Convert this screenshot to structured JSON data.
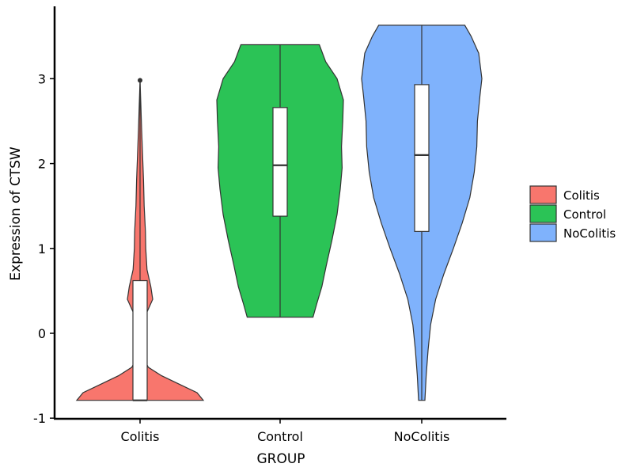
{
  "chart_data": {
    "type": "violin",
    "title": "",
    "xlabel": "GROUP",
    "ylabel": "Expression of CTSW",
    "ylim": [
      -1,
      3.85
    ],
    "yticks": [
      -1,
      0,
      1,
      2,
      3
    ],
    "ytick_labels": [
      "-1",
      "0",
      "1",
      "2",
      "3"
    ],
    "categories": [
      "Colitis",
      "Control",
      "NoColitis"
    ],
    "legend_position": "right",
    "grid": false,
    "series": [
      {
        "name": "Colitis",
        "color": "#F8766D",
        "min": -0.79,
        "max": 2.98,
        "box": {
          "q1": -0.79,
          "median": -0.79,
          "q3": 0.62,
          "whisker_low": -0.79,
          "whisker_high": 2.98
        },
        "outliers": [
          2.98
        ],
        "density": [
          [
            -0.79,
            1.0
          ],
          [
            -0.7,
            0.9
          ],
          [
            -0.6,
            0.62
          ],
          [
            -0.5,
            0.34
          ],
          [
            -0.4,
            0.13
          ],
          [
            -0.3,
            0.06
          ],
          [
            -0.15,
            0.035
          ],
          [
            0.0,
            0.03
          ],
          [
            0.15,
            0.05
          ],
          [
            0.3,
            0.14
          ],
          [
            0.4,
            0.2
          ],
          [
            0.55,
            0.17
          ],
          [
            0.75,
            0.11
          ],
          [
            1.0,
            0.09
          ],
          [
            1.2,
            0.085
          ],
          [
            1.5,
            0.065
          ],
          [
            1.8,
            0.055
          ],
          [
            2.1,
            0.04
          ],
          [
            2.4,
            0.025
          ],
          [
            2.7,
            0.012
          ],
          [
            2.98,
            0.0
          ]
        ]
      },
      {
        "name": "Control",
        "color": "#2BC356",
        "min": 0.19,
        "max": 3.4,
        "box": {
          "q1": 1.38,
          "median": 1.98,
          "q3": 2.66,
          "whisker_low": 0.19,
          "whisker_high": 3.4
        },
        "outliers": [],
        "density": [
          [
            0.19,
            0.52
          ],
          [
            0.35,
            0.58
          ],
          [
            0.55,
            0.66
          ],
          [
            0.8,
            0.73
          ],
          [
            1.1,
            0.82
          ],
          [
            1.4,
            0.9
          ],
          [
            1.7,
            0.95
          ],
          [
            1.95,
            0.98
          ],
          [
            2.2,
            0.97
          ],
          [
            2.5,
            0.99
          ],
          [
            2.75,
            1.0
          ],
          [
            3.0,
            0.9
          ],
          [
            3.2,
            0.72
          ],
          [
            3.4,
            0.62
          ]
        ]
      },
      {
        "name": "NoColitis",
        "color": "#7FB2FC",
        "min": -0.79,
        "max": 3.63,
        "box": {
          "q1": 1.2,
          "median": 2.1,
          "q3": 2.93,
          "whisker_low": -0.79,
          "whisker_high": 3.63
        },
        "outliers": [],
        "density": [
          [
            -0.79,
            0.05
          ],
          [
            -0.5,
            0.07
          ],
          [
            -0.2,
            0.1
          ],
          [
            0.1,
            0.14
          ],
          [
            0.4,
            0.22
          ],
          [
            0.7,
            0.35
          ],
          [
            1.0,
            0.5
          ],
          [
            1.3,
            0.64
          ],
          [
            1.6,
            0.76
          ],
          [
            1.9,
            0.83
          ],
          [
            2.2,
            0.87
          ],
          [
            2.5,
            0.88
          ],
          [
            2.8,
            0.92
          ],
          [
            3.0,
            0.95
          ],
          [
            3.3,
            0.9
          ],
          [
            3.5,
            0.78
          ],
          [
            3.63,
            0.68
          ]
        ]
      }
    ]
  }
}
